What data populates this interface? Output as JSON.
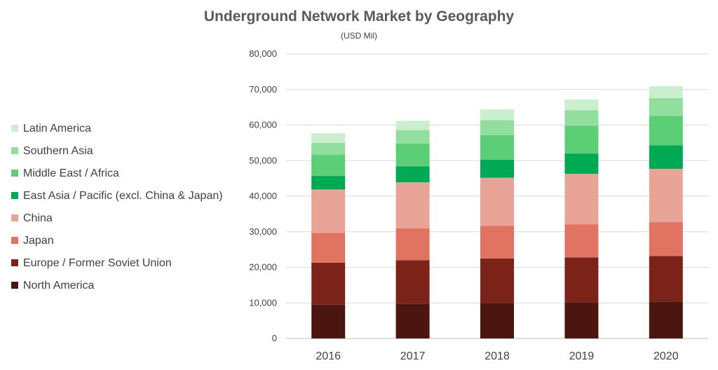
{
  "chart_data": {
    "type": "bar",
    "stacked": true,
    "title": "Underground Network Market by Geography",
    "subtitle": "(USD Mil)",
    "xlabel": "",
    "ylabel": "",
    "ylim": [
      0,
      80000
    ],
    "yticks": [
      0,
      10000,
      20000,
      30000,
      40000,
      50000,
      60000,
      70000,
      80000
    ],
    "ytick_labels": [
      "0",
      "10,000",
      "20,000",
      "30,000",
      "40,000",
      "50,000",
      "60,000",
      "70,000",
      "80,000"
    ],
    "grid": true,
    "legend_position": "left",
    "categories": [
      "2016",
      "2017",
      "2018",
      "2019",
      "2020"
    ],
    "series": [
      {
        "name": "North America",
        "color": "#4a160f",
        "values": [
          9500,
          9800,
          10000,
          10200,
          10400
        ]
      },
      {
        "name": "Europe / Former Soviet Union",
        "color": "#7b2318",
        "values": [
          11800,
          12200,
          12500,
          12600,
          12800
        ]
      },
      {
        "name": "Japan",
        "color": "#e07362",
        "values": [
          8400,
          9000,
          9200,
          9300,
          9500
        ]
      },
      {
        "name": "China",
        "color": "#e8a496",
        "values": [
          12200,
          12900,
          13500,
          14200,
          15000
        ]
      },
      {
        "name": "East Asia / Pacific (excl. China & Japan)",
        "color": "#00aa55",
        "values": [
          3800,
          4500,
          5100,
          5700,
          6600
        ]
      },
      {
        "name": "Middle East / Africa",
        "color": "#5cce75",
        "values": [
          6000,
          6400,
          6900,
          7800,
          8300
        ]
      },
      {
        "name": "Southern Asia",
        "color": "#92de9e",
        "values": [
          3300,
          3800,
          4200,
          4400,
          5000
        ]
      },
      {
        "name": "Latin America",
        "color": "#c9efcc",
        "values": [
          2700,
          2600,
          3000,
          3000,
          3300
        ]
      }
    ]
  }
}
